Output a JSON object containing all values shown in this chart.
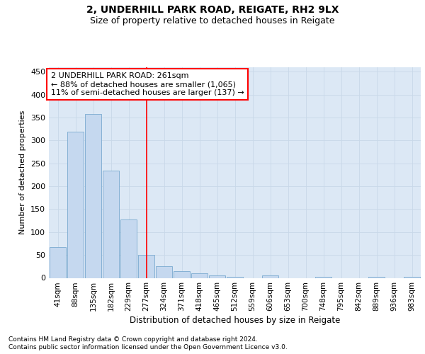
{
  "title1": "2, UNDERHILL PARK ROAD, REIGATE, RH2 9LX",
  "title2": "Size of property relative to detached houses in Reigate",
  "xlabel": "Distribution of detached houses by size in Reigate",
  "ylabel": "Number of detached properties",
  "footnote1": "Contains HM Land Registry data © Crown copyright and database right 2024.",
  "footnote2": "Contains public sector information licensed under the Open Government Licence v3.0.",
  "bar_labels": [
    "41sqm",
    "88sqm",
    "135sqm",
    "182sqm",
    "229sqm",
    "277sqm",
    "324sqm",
    "371sqm",
    "418sqm",
    "465sqm",
    "512sqm",
    "559sqm",
    "606sqm",
    "653sqm",
    "700sqm",
    "748sqm",
    "795sqm",
    "842sqm",
    "889sqm",
    "936sqm",
    "983sqm"
  ],
  "bar_values": [
    68,
    320,
    358,
    235,
    127,
    50,
    25,
    15,
    10,
    5,
    3,
    0,
    5,
    0,
    0,
    3,
    0,
    0,
    3,
    0,
    3
  ],
  "bar_color": "#c5d8ef",
  "bar_edge_color": "#7aaad0",
  "grid_color": "#c8d8e8",
  "background_color": "#dce8f5",
  "red_line_x": 5,
  "annotation_line1": "2 UNDERHILL PARK ROAD: 261sqm",
  "annotation_line2": "← 88% of detached houses are smaller (1,065)",
  "annotation_line3": "11% of semi-detached houses are larger (137) →",
  "ylim": [
    0,
    460
  ],
  "yticks": [
    0,
    50,
    100,
    150,
    200,
    250,
    300,
    350,
    400,
    450
  ]
}
